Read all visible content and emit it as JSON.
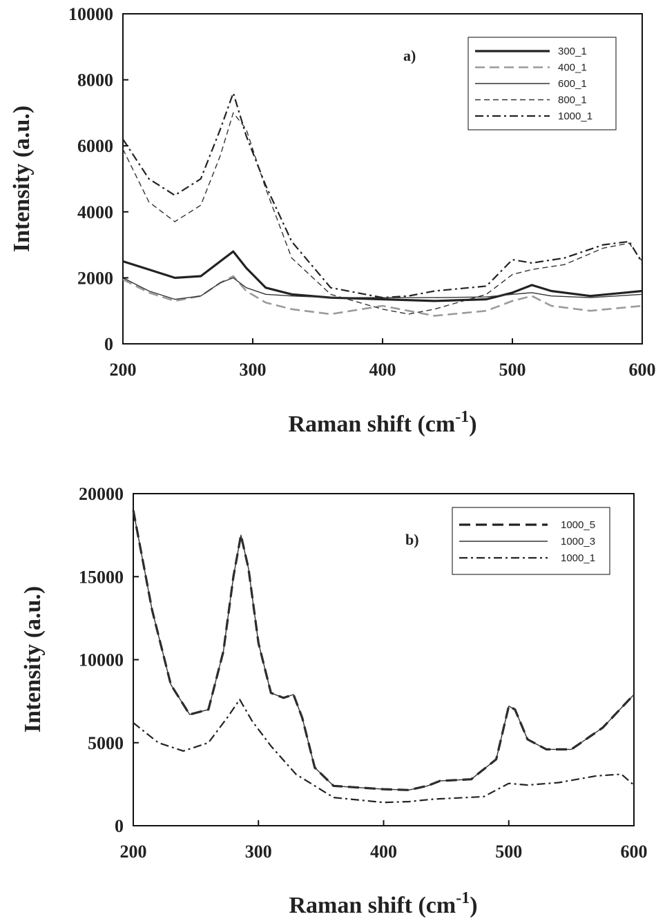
{
  "chart_data": [
    {
      "type": "line",
      "panel_label": "a)",
      "xlabel": "Raman shift (cm",
      "xlabel_sup": "-1",
      "xlabel_close": ")",
      "ylabel": "Intensity (a.u.)",
      "xlim": [
        200,
        600
      ],
      "ylim": [
        0,
        10000
      ],
      "xticks": [
        200,
        300,
        400,
        500,
        600
      ],
      "yticks": [
        0,
        2000,
        4000,
        6000,
        8000,
        10000
      ],
      "legend": "top-right",
      "grid": false,
      "series": [
        {
          "name": "300_1",
          "x": [
            200,
            220,
            240,
            260,
            275,
            285,
            295,
            310,
            330,
            360,
            400,
            440,
            480,
            500,
            515,
            530,
            560,
            600
          ],
          "y": [
            2500,
            2250,
            2000,
            2050,
            2500,
            2800,
            2300,
            1700,
            1500,
            1400,
            1350,
            1300,
            1350,
            1550,
            1780,
            1600,
            1450,
            1600
          ]
        },
        {
          "name": "400_1",
          "x": [
            200,
            220,
            240,
            260,
            275,
            285,
            295,
            310,
            330,
            360,
            400,
            440,
            480,
            500,
            515,
            530,
            560,
            600
          ],
          "y": [
            1950,
            1550,
            1300,
            1450,
            1850,
            2050,
            1600,
            1250,
            1050,
            900,
            1150,
            850,
            1000,
            1300,
            1450,
            1150,
            1000,
            1150
          ]
        },
        {
          "name": "600_1",
          "x": [
            200,
            220,
            240,
            260,
            275,
            285,
            295,
            310,
            330,
            360,
            400,
            440,
            480,
            500,
            515,
            530,
            560,
            600
          ],
          "y": [
            2000,
            1600,
            1350,
            1450,
            1850,
            2000,
            1700,
            1500,
            1450,
            1400,
            1400,
            1400,
            1420,
            1500,
            1550,
            1450,
            1400,
            1500
          ]
        },
        {
          "name": "800_1",
          "x": [
            200,
            220,
            240,
            260,
            275,
            285,
            295,
            310,
            330,
            360,
            400,
            420,
            440,
            480,
            500,
            515,
            540,
            570,
            590,
            600
          ],
          "y": [
            5900,
            4300,
            3700,
            4200,
            5700,
            7000,
            6500,
            4700,
            2600,
            1500,
            1050,
            900,
            1050,
            1500,
            2100,
            2250,
            2400,
            2900,
            3050,
            2500
          ]
        },
        {
          "name": "1000_1",
          "x": [
            200,
            220,
            240,
            260,
            275,
            285,
            295,
            310,
            330,
            360,
            400,
            420,
            440,
            480,
            500,
            515,
            540,
            570,
            590,
            600
          ],
          "y": [
            6200,
            5000,
            4500,
            5000,
            6500,
            7600,
            6300,
            4800,
            3100,
            1700,
            1400,
            1450,
            1600,
            1750,
            2550,
            2450,
            2600,
            3000,
            3100,
            2450
          ]
        }
      ]
    },
    {
      "type": "line",
      "panel_label": "b)",
      "xlabel": "Raman shift (cm",
      "xlabel_sup": "-1",
      "xlabel_close": ")",
      "ylabel": "Intensity (a.u.)",
      "xlim": [
        200,
        600
      ],
      "ylim": [
        0,
        20000
      ],
      "xticks": [
        200,
        300,
        400,
        500,
        600
      ],
      "yticks": [
        0,
        5000,
        10000,
        15000,
        20000
      ],
      "legend": "top-right",
      "grid": false,
      "series": [
        {
          "name": "1000_5",
          "x": [
            200,
            215,
            230,
            245,
            260,
            272,
            280,
            286,
            292,
            300,
            310,
            320,
            328,
            335,
            345,
            360,
            380,
            400,
            420,
            435,
            445,
            470,
            490,
            500,
            505,
            515,
            530,
            550,
            575,
            600
          ],
          "y": [
            19000,
            13000,
            8500,
            6700,
            7000,
            10500,
            15000,
            17500,
            15500,
            11000,
            8000,
            7700,
            7900,
            6500,
            3500,
            2400,
            2300,
            2200,
            2150,
            2400,
            2700,
            2800,
            4000,
            7200,
            7000,
            5200,
            4600,
            4600,
            5900,
            7900
          ]
        },
        {
          "name": "1000_3",
          "x": [
            200,
            215,
            230,
            245,
            260,
            272,
            280,
            286,
            292,
            300,
            310,
            320,
            328,
            335,
            345,
            360,
            380,
            400,
            420,
            435,
            445,
            470,
            490,
            500,
            505,
            515,
            530,
            550,
            575,
            600
          ],
          "y": [
            19000,
            13000,
            8500,
            6700,
            7000,
            10500,
            15000,
            17500,
            15500,
            11000,
            8000,
            7700,
            7900,
            6500,
            3500,
            2400,
            2300,
            2200,
            2150,
            2400,
            2700,
            2800,
            4000,
            7200,
            7000,
            5200,
            4600,
            4600,
            5900,
            7900
          ]
        },
        {
          "name": "1000_1",
          "x": [
            200,
            220,
            240,
            260,
            275,
            285,
            295,
            310,
            330,
            360,
            400,
            420,
            440,
            480,
            500,
            515,
            540,
            570,
            590,
            600
          ],
          "y": [
            6200,
            5000,
            4500,
            5000,
            6500,
            7600,
            6300,
            4800,
            3100,
            1700,
            1400,
            1450,
            1600,
            1750,
            2550,
            2450,
            2600,
            3000,
            3100,
            2450
          ]
        }
      ]
    }
  ]
}
